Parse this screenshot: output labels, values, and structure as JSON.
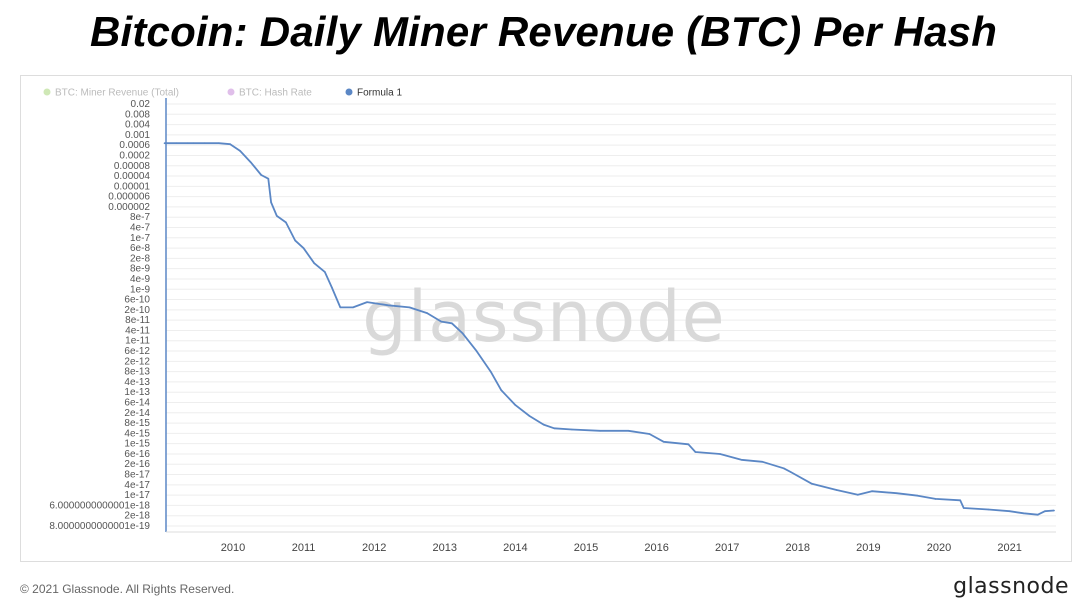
{
  "page": {
    "headline": "Bitcoin: Daily Miner Revenue (BTC) Per Hash",
    "copyright": "© 2021 Glassnode. All Rights Reserved.",
    "brand": "glassnode"
  },
  "chart_data": {
    "type": "line",
    "title": "Bitcoin: Daily Miner Revenue (BTC) Per Hash",
    "xlabel": "",
    "ylabel": "",
    "y_scale": "log",
    "grid": true,
    "watermark": "glassnode",
    "legend_position": "top-left",
    "legend": [
      {
        "name": "BTC: Miner Revenue (Total)",
        "color": "#a8d67a",
        "active": false
      },
      {
        "name": "BTC: Hash Rate",
        "color": "#c68ad8",
        "active": false
      },
      {
        "name": "Formula 1",
        "color": "#5b87c5",
        "active": true
      }
    ],
    "x_ticks": [
      "2010",
      "2011",
      "2012",
      "2013",
      "2014",
      "2015",
      "2016",
      "2017",
      "2018",
      "2019",
      "2020",
      "2021"
    ],
    "y_ticks": [
      "0.02",
      "0.008",
      "0.004",
      "0.001",
      "0.0006",
      "0.0002",
      "0.00008",
      "0.00004",
      "0.00001",
      "0.000006",
      "0.000002",
      "8e-7",
      "4e-7",
      "1e-7",
      "6e-8",
      "2e-8",
      "8e-9",
      "4e-9",
      "1e-9",
      "6e-10",
      "2e-10",
      "8e-11",
      "4e-11",
      "1e-11",
      "6e-12",
      "2e-12",
      "8e-13",
      "4e-13",
      "1e-13",
      "6e-14",
      "2e-14",
      "8e-15",
      "4e-15",
      "1e-15",
      "6e-16",
      "2e-16",
      "8e-17",
      "4e-17",
      "1e-17",
      "6.0000000000001e-18",
      "2e-18",
      "8.0000000000001e-19"
    ],
    "series": [
      {
        "name": "Formula 1",
        "color": "#5b87c5",
        "points": [
          [
            2009.03,
            0.0006
          ],
          [
            2009.2,
            0.0006
          ],
          [
            2009.36,
            0.0006
          ],
          [
            2009.44,
            0.0006
          ],
          [
            2009.6,
            0.0006
          ],
          [
            2009.8,
            0.0006
          ],
          [
            2009.96,
            0.00055
          ],
          [
            2010.1,
            0.0003
          ],
          [
            2010.25,
            0.00011
          ],
          [
            2010.4,
            3.5e-05
          ],
          [
            2010.5,
            2.5e-05
          ],
          [
            2010.54,
            3e-06
          ],
          [
            2010.62,
            9e-07
          ],
          [
            2010.75,
            5e-07
          ],
          [
            2010.88,
            1e-07
          ],
          [
            2011.0,
            5e-08
          ],
          [
            2011.15,
            1.3e-08
          ],
          [
            2011.3,
            6e-09
          ],
          [
            2011.4,
            1.5e-09
          ],
          [
            2011.52,
            2.5e-10
          ],
          [
            2011.7,
            2.5e-10
          ],
          [
            2011.9,
            4e-10
          ],
          [
            2012.2,
            3e-10
          ],
          [
            2012.5,
            2.5e-10
          ],
          [
            2012.75,
            1.5e-10
          ],
          [
            2012.95,
            7e-11
          ],
          [
            2013.1,
            6e-11
          ],
          [
            2013.25,
            2.5e-11
          ],
          [
            2013.45,
            5e-12
          ],
          [
            2013.65,
            8e-13
          ],
          [
            2013.8,
            1.5e-13
          ],
          [
            2014.0,
            4e-14
          ],
          [
            2014.2,
            1.5e-14
          ],
          [
            2014.4,
            7e-15
          ],
          [
            2014.55,
            5e-15
          ],
          [
            2014.8,
            4.5e-15
          ],
          [
            2015.2,
            4e-15
          ],
          [
            2015.6,
            4e-15
          ],
          [
            2015.9,
            3e-15
          ],
          [
            2016.1,
            1.5e-15
          ],
          [
            2016.45,
            1.2e-15
          ],
          [
            2016.55,
            6e-16
          ],
          [
            2016.9,
            5e-16
          ],
          [
            2017.2,
            3e-16
          ],
          [
            2017.5,
            2.5e-16
          ],
          [
            2017.8,
            1.4e-16
          ],
          [
            2017.9,
            1e-16
          ],
          [
            2018.2,
            3.5e-17
          ],
          [
            2018.55,
            2e-17
          ],
          [
            2018.85,
            1.3e-17
          ],
          [
            2019.05,
            1.8e-17
          ],
          [
            2019.4,
            1.5e-17
          ],
          [
            2019.7,
            1.2e-17
          ],
          [
            2019.95,
            9e-18
          ],
          [
            2020.3,
            8e-18
          ],
          [
            2020.35,
            4e-18
          ],
          [
            2020.7,
            3.5e-18
          ],
          [
            2021.0,
            3e-18
          ],
          [
            2021.2,
            2.5e-18
          ],
          [
            2021.4,
            2.2e-18
          ],
          [
            2021.5,
            3e-18
          ],
          [
            2021.63,
            3.2e-18
          ]
        ]
      }
    ]
  }
}
